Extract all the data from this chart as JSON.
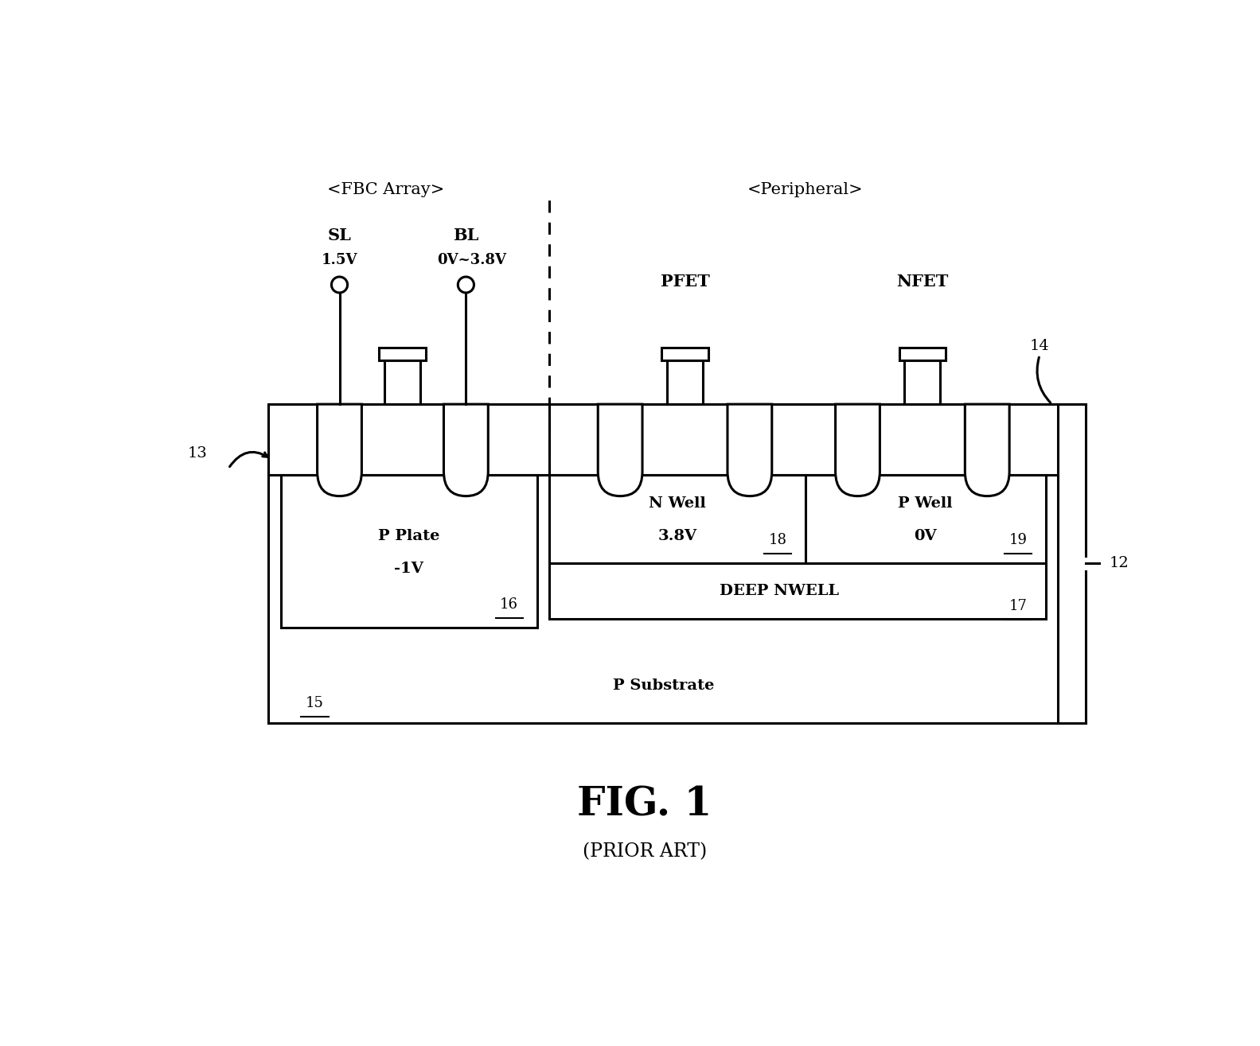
{
  "bg_color": "#ffffff",
  "fig_title": "FIG. 1",
  "fig_subtitle": "(PRIOR ART)",
  "label_fbc": "<FBC Array>",
  "label_peripheral": "<Peripheral>",
  "label_sl": "SL",
  "label_sl_v": "1.5V",
  "label_bl": "BL",
  "label_bl_v": "0V~3.8V",
  "label_pfet": "PFET",
  "label_nfet": "NFET",
  "label_13": "13",
  "label_14": "14",
  "label_12": "12",
  "label_15": "15",
  "label_16": "16",
  "label_17": "17",
  "label_18": "18",
  "label_19": "19",
  "label_p_plate": "P Plate\n-1V",
  "label_n_well": "N Well\n3.8V",
  "label_p_well": "P Well\n0V",
  "label_deep_nwell": "DEEP NWELL",
  "label_p_substrate": "P Substrate",
  "line_color": "#000000",
  "lw": 2.2
}
